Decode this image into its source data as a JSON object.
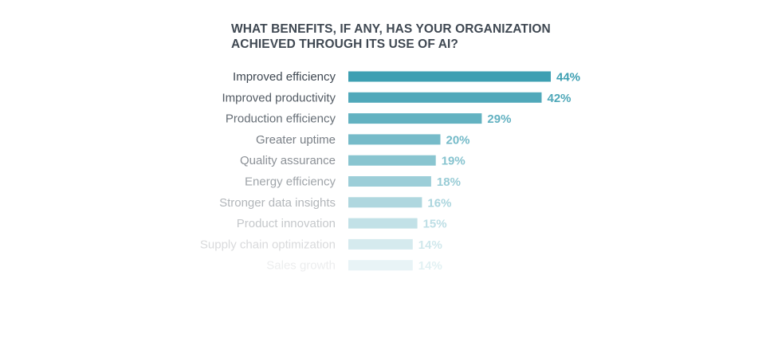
{
  "colors": {
    "bar_start": "#3d9fb2",
    "label_text": "#3f4852",
    "title_text": "#3f4852",
    "background": "#ffffff"
  },
  "chart_data": {
    "type": "bar",
    "orientation": "horizontal",
    "title": "WHAT BENEFITS, IF ANY, HAS YOUR ORGANIZATION\nACHIEVED THROUGH ITS USE OF AI?",
    "xlabel": "",
    "ylabel": "",
    "unit": "%",
    "xlim": [
      0,
      44
    ],
    "grid": false,
    "legend": "none",
    "fade": "bars and labels fade toward white further down the list",
    "categories": [
      "Improved efficiency",
      "Improved productivity",
      "Production efficiency",
      "Greater uptime",
      "Quality assurance",
      "Energy efficiency",
      "Stronger data insights",
      "Product innovation",
      "Supply chain optimization",
      "Sales growth"
    ],
    "values": [
      44,
      42,
      29,
      20,
      19,
      18,
      16,
      15,
      14,
      14
    ],
    "value_labels": [
      "44%",
      "42%",
      "29%",
      "20%",
      "19%",
      "18%",
      "16%",
      "15%",
      "14%",
      "14%"
    ]
  }
}
